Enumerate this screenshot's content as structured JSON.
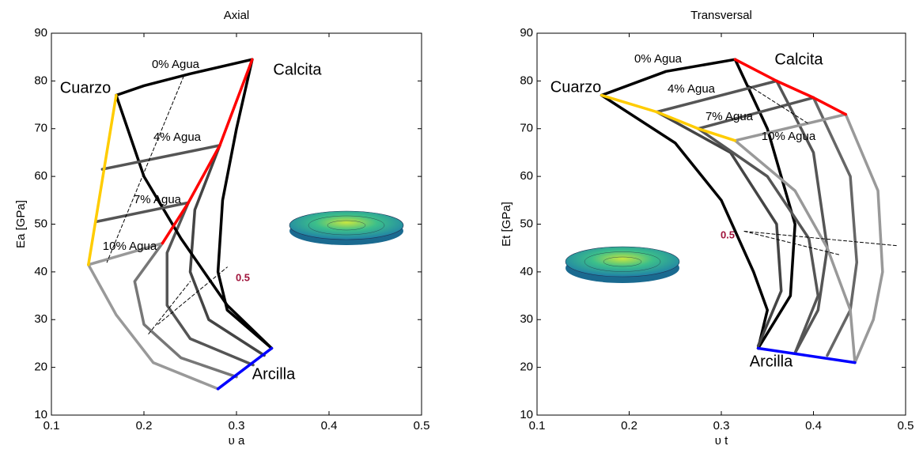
{
  "chart_data": [
    {
      "type": "line",
      "title": "Axial",
      "xlabel": "υ a",
      "ylabel": "Ea [GPa]",
      "xlim": [
        0.1,
        0.5
      ],
      "ylim": [
        10,
        90
      ],
      "xticks": [
        0.1,
        0.2,
        0.3,
        0.4,
        0.5
      ],
      "yticks": [
        10,
        20,
        30,
        40,
        50,
        60,
        70,
        80,
        90
      ],
      "series": [
        {
          "color": "#999999",
          "x": [
            0.14,
            0.17,
            0.21,
            0.28
          ],
          "y": [
            41.5,
            31,
            21,
            15.5
          ]
        },
        {
          "color": "#777777",
          "x": [
            0.22,
            0.19,
            0.2,
            0.24,
            0.3
          ],
          "y": [
            46,
            38,
            29,
            22,
            18
          ]
        },
        {
          "color": "#555555",
          "x": [
            0.248,
            0.225,
            0.225,
            0.25,
            0.318
          ],
          "y": [
            54.5,
            44,
            33,
            26,
            20.5
          ]
        },
        {
          "color": "#444444",
          "x": [
            0.282,
            0.255,
            0.25,
            0.27,
            0.33
          ],
          "y": [
            66.5,
            53,
            40,
            30,
            22.5
          ]
        },
        {
          "color": "#000000",
          "x": [
            0.317,
            0.3,
            0.285,
            0.28,
            0.29,
            0.338
          ],
          "y": [
            84.5,
            70,
            55,
            40,
            32,
            24
          ]
        },
        {
          "color": "#000000",
          "x": [
            0.17,
            0.2,
            0.24,
            0.29,
            0.338
          ],
          "y": [
            77,
            60,
            47,
            33,
            24
          ]
        },
        {
          "color": "#555555",
          "x": [
            0.155,
            0.282
          ],
          "y": [
            61.5,
            66.5
          ]
        },
        {
          "color": "#555555",
          "x": [
            0.148,
            0.248
          ],
          "y": [
            50.5,
            54.5
          ]
        },
        {
          "color": "#999999",
          "x": [
            0.14,
            0.22
          ],
          "y": [
            41.5,
            46
          ]
        },
        {
          "color": "#000000",
          "x": [
            0.17,
            0.2,
            0.25,
            0.317
          ],
          "y": [
            77,
            79,
            81.5,
            84.5
          ]
        },
        {
          "color": "#ffcc00",
          "x": [
            0.17,
            0.14
          ],
          "y": [
            77,
            41.5
          ]
        },
        {
          "color": "#ff0000",
          "x": [
            0.317,
            0.282,
            0.248,
            0.22
          ],
          "y": [
            84.5,
            66.5,
            54.5,
            46
          ]
        },
        {
          "color": "#0000ff",
          "x": [
            0.28,
            0.338
          ],
          "y": [
            15.5,
            24
          ]
        },
        {
          "color": "#000000",
          "dash": true,
          "x": [
            0.243,
            0.16
          ],
          "y": [
            81,
            42
          ]
        },
        {
          "color": "#000000",
          "dash": true,
          "x": [
            0.205,
            0.25
          ],
          "y": [
            27,
            38
          ]
        },
        {
          "color": "#000000",
          "dash": true,
          "x": [
            0.215,
            0.29
          ],
          "y": [
            29,
            41
          ]
        }
      ],
      "annotations": [
        {
          "text": "0% Agua"
        },
        {
          "text": "Cuarzo"
        },
        {
          "text": "Calcita"
        },
        {
          "text": "4% Agua"
        },
        {
          "text": "7% Agua"
        },
        {
          "text": "10% Agua"
        },
        {
          "text": "0.5",
          "color": "#a0143c"
        },
        {
          "text": "Arcilla"
        }
      ]
    },
    {
      "type": "line",
      "title": "Transversal",
      "xlabel": "υ t",
      "ylabel": "Et [GPa]",
      "xlim": [
        0.1,
        0.5
      ],
      "ylim": [
        10,
        90
      ],
      "xticks": [
        0.1,
        0.2,
        0.3,
        0.4,
        0.5
      ],
      "yticks": [
        10,
        20,
        30,
        40,
        50,
        60,
        70,
        80,
        90
      ],
      "series": [
        {
          "color": "#000000",
          "x": [
            0.17,
            0.25,
            0.3,
            0.335,
            0.35,
            0.34
          ],
          "y": [
            77,
            67,
            55,
            40,
            32,
            24
          ]
        },
        {
          "color": "#000000",
          "x": [
            0.315,
            0.35,
            0.38,
            0.375,
            0.34
          ],
          "y": [
            84.5,
            70,
            50,
            35,
            24
          ]
        },
        {
          "color": "#444444",
          "x": [
            0.23,
            0.31,
            0.36,
            0.365,
            0.34
          ],
          "y": [
            73.5,
            65,
            50,
            36,
            24.5
          ]
        },
        {
          "color": "#555555",
          "x": [
            0.36,
            0.4,
            0.415,
            0.405,
            0.38
          ],
          "y": [
            80,
            65,
            45,
            32,
            23
          ]
        },
        {
          "color": "#555555",
          "x": [
            0.275,
            0.35,
            0.395,
            0.405,
            0.38
          ],
          "y": [
            70,
            60,
            47,
            35,
            23
          ]
        },
        {
          "color": "#666666",
          "x": [
            0.4,
            0.44,
            0.447,
            0.44,
            0.415
          ],
          "y": [
            76.5,
            60,
            42,
            32,
            22.5
          ]
        },
        {
          "color": "#999999",
          "x": [
            0.315,
            0.38,
            0.415,
            0.44,
            0.445
          ],
          "y": [
            67.5,
            57,
            45,
            32,
            21
          ]
        },
        {
          "color": "#999999",
          "x": [
            0.435,
            0.47,
            0.475,
            0.465,
            0.445
          ],
          "y": [
            73,
            57,
            40,
            30,
            21
          ]
        },
        {
          "color": "#000000",
          "x": [
            0.17,
            0.24,
            0.315
          ],
          "y": [
            77,
            82,
            84.5
          ]
        },
        {
          "color": "#555555",
          "x": [
            0.23,
            0.36
          ],
          "y": [
            73.5,
            80
          ]
        },
        {
          "color": "#555555",
          "x": [
            0.275,
            0.4
          ],
          "y": [
            70,
            76.5
          ]
        },
        {
          "color": "#999999",
          "x": [
            0.315,
            0.435
          ],
          "y": [
            67.5,
            73
          ]
        },
        {
          "color": "#ffcc00",
          "x": [
            0.17,
            0.23,
            0.275,
            0.315
          ],
          "y": [
            77,
            73.5,
            70,
            67.5
          ]
        },
        {
          "color": "#ff0000",
          "x": [
            0.315,
            0.36,
            0.4,
            0.435
          ],
          "y": [
            84.5,
            80,
            76.5,
            73
          ]
        },
        {
          "color": "#0000ff",
          "x": [
            0.34,
            0.445
          ],
          "y": [
            24,
            21
          ]
        },
        {
          "color": "#000000",
          "dash": true,
          "x": [
            0.325,
            0.49
          ],
          "y": [
            48.5,
            45.5
          ]
        },
        {
          "color": "#000000",
          "dash": true,
          "x": [
            0.325,
            0.43
          ],
          "y": [
            48.5,
            43.5
          ]
        },
        {
          "color": "#000000",
          "dash": true,
          "x": [
            0.33,
            0.395
          ],
          "y": [
            79,
            71
          ]
        }
      ],
      "annotations": [
        {
          "text": "0% Agua"
        },
        {
          "text": "Calcita"
        },
        {
          "text": "Cuarzo"
        },
        {
          "text": "4% Agua"
        },
        {
          "text": "7% Agua"
        },
        {
          "text": "10% Agua"
        },
        {
          "text": "0.5",
          "color": "#a0143c"
        },
        {
          "text": "Arcilla"
        }
      ]
    }
  ]
}
